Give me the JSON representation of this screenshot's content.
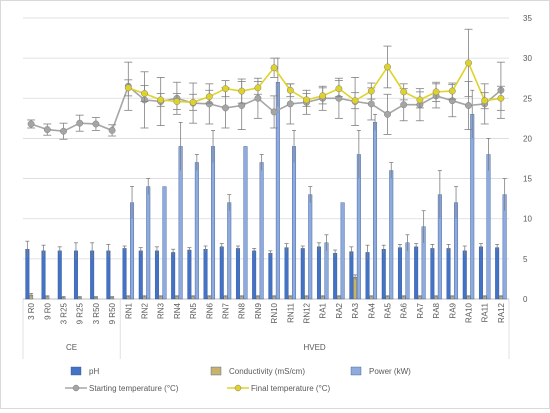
{
  "chart_data": {
    "type": "bar",
    "categories": [
      "3 R0",
      "9 R0",
      "3 R25",
      "9 R25",
      "3 R50",
      "9 R50",
      "RN1",
      "RN2",
      "RN3",
      "RN4",
      "RN5",
      "RN6",
      "RN7",
      "RN8",
      "RN9",
      "RN10",
      "RN11",
      "RN12",
      "RA1",
      "RA2",
      "RA3",
      "RA4",
      "RA5",
      "RA6",
      "RA7",
      "RA8",
      "RA9",
      "RA10",
      "RA11",
      "RA12"
    ],
    "groups": [
      {
        "label": "CE",
        "from": 0,
        "to": 5
      },
      {
        "label": "HVED",
        "from": 6,
        "to": 29
      }
    ],
    "ylim": [
      0,
      35
    ],
    "yticks": [
      0,
      5,
      10,
      15,
      20,
      25,
      30,
      35
    ],
    "grid": true,
    "legend_position": "bottom",
    "series": [
      {
        "name": "pH",
        "kind": "bar",
        "color": "#4472c4",
        "values": [
          6.2,
          6.0,
          6.0,
          6.0,
          6.0,
          6.0,
          6.3,
          6.0,
          6.0,
          5.8,
          6.1,
          6.2,
          6.5,
          6.3,
          6.0,
          5.7,
          6.4,
          6.3,
          6.5,
          5.7,
          5.9,
          5.8,
          6.2,
          6.4,
          6.5,
          6.3,
          6.3,
          6.0,
          6.5,
          6.4
        ],
        "errors": [
          1.0,
          0.7,
          0.5,
          1.0,
          1.0,
          0.8,
          0.3,
          0.4,
          0.5,
          0.4,
          0.3,
          0.4,
          0.4,
          0.3,
          0.3,
          0.3,
          0.5,
          0.3,
          0.5,
          0.4,
          0.6,
          0.9,
          0.5,
          0.4,
          0.4,
          0.5,
          0.5,
          0.6,
          0.4,
          0.4
        ]
      },
      {
        "name": "Conductivity (mS/cm)",
        "kind": "bar",
        "color": "#c9b26a",
        "values": [
          0.5,
          0.3,
          0.2,
          0.2,
          0.2,
          0.2,
          0.3,
          0.3,
          0.3,
          0.3,
          0.3,
          0.3,
          0.3,
          0.3,
          0.3,
          0.3,
          0.3,
          0.3,
          0.3,
          0.3,
          2.7,
          0.3,
          0.3,
          0.3,
          0.3,
          0.3,
          0.3,
          0.3,
          0.3,
          0.3
        ],
        "errors": [
          0.2,
          0.1,
          0.1,
          0.1,
          0.1,
          0.1,
          0.1,
          0.1,
          0.1,
          0.1,
          0.1,
          0.1,
          0.1,
          0.1,
          0.1,
          0.1,
          0.1,
          0.1,
          0.1,
          0.1,
          0.3,
          0.1,
          0.1,
          0.1,
          0.1,
          0.1,
          0.1,
          0.1,
          0.1,
          0.1
        ]
      },
      {
        "name": "Power (kW)",
        "kind": "bar",
        "color": "#8faadc",
        "values": [
          0,
          0,
          0,
          0,
          0,
          0,
          12,
          14,
          14,
          19,
          17,
          19,
          12,
          19,
          17,
          27,
          19,
          13,
          7,
          12,
          18,
          22,
          16,
          7,
          9,
          13,
          12,
          23,
          18,
          13
        ],
        "errors": [
          0,
          0,
          0,
          0,
          0,
          0,
          2,
          1,
          0,
          3,
          1,
          2,
          1,
          0,
          1,
          3,
          2,
          1,
          1,
          0,
          3,
          1,
          1,
          1,
          2,
          3,
          2,
          3,
          2,
          2
        ]
      },
      {
        "name": "Starting temperature (°C)",
        "kind": "line",
        "color": "#a5a5a5",
        "values": [
          21.8,
          21.1,
          20.9,
          21.9,
          21.8,
          21.0,
          26.5,
          24.8,
          24.6,
          25.0,
          24.4,
          24.3,
          23.8,
          24.1,
          25.0,
          23.3,
          24.3,
          24.5,
          25.0,
          25.0,
          24.6,
          24.3,
          23.0,
          24.2,
          24.2,
          25.3,
          24.7,
          24.1,
          24.3,
          26.0
        ],
        "errors": [
          0.5,
          0.7,
          1.0,
          1.0,
          0.8,
          0.7,
          3.0,
          3.5,
          3.0,
          2.0,
          2.5,
          2.5,
          2.5,
          3.0,
          2.5,
          2.0,
          2.5,
          1.5,
          1.5,
          2.5,
          3.0,
          2.0,
          2.5,
          2.0,
          2.0,
          1.5,
          2.0,
          3.0,
          2.5,
          3.5
        ]
      },
      {
        "name": "Final temperature (°C)",
        "kind": "line",
        "color": "#dfd32a",
        "values": [
          null,
          null,
          null,
          null,
          null,
          null,
          26.3,
          25.6,
          24.8,
          24.6,
          24.5,
          25.2,
          26.2,
          25.9,
          26.3,
          28.8,
          26.0,
          24.8,
          25.3,
          26.2,
          24.7,
          25.9,
          28.9,
          25.8,
          24.8,
          25.8,
          25.9,
          29.4,
          24.7,
          25.0
        ],
        "errors": [
          0,
          0,
          0,
          0,
          0,
          0,
          1.0,
          1.0,
          0.8,
          1.0,
          1.0,
          0.8,
          1.0,
          1.5,
          0.8,
          1.2,
          0.8,
          0.8,
          1.0,
          1.0,
          1.0,
          1.0,
          2.6,
          1.0,
          1.0,
          1.2,
          1.0,
          4.2,
          1.0,
          1.5
        ]
      }
    ]
  }
}
